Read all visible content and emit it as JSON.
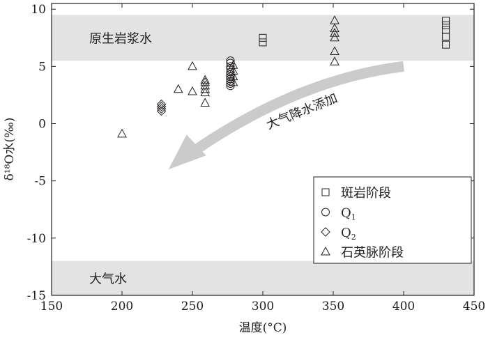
{
  "chart_data": {
    "type": "scatter",
    "xlabel": "温度(°C)",
    "ylabel": "δ¹⁸O水(‰)",
    "xlim": [
      150,
      450
    ],
    "ylim": [
      -15,
      10.5
    ],
    "x_ticks": [
      150,
      200,
      250,
      300,
      350,
      400,
      450
    ],
    "y_ticks": [
      10,
      5,
      0,
      -5,
      -10,
      -15
    ],
    "y_tick_labels": [
      "10",
      "5",
      "0",
      "-5",
      "-10",
      "-15"
    ],
    "bands": [
      {
        "label": "原生岩浆水",
        "y_range": [
          5.5,
          9.5
        ]
      },
      {
        "label": "大气水",
        "y_range": [
          -15,
          -12
        ]
      }
    ],
    "arrow_annotation": {
      "text": "大气降水添加",
      "from": [
        400,
        5
      ],
      "to": [
        233,
        -4
      ]
    },
    "legend_position": "bottom-right",
    "series": [
      {
        "name": "斑岩阶段",
        "marker": "square",
        "points": [
          [
            300,
            7.1
          ],
          [
            300,
            7.5
          ],
          [
            430,
            9.0
          ],
          [
            430,
            8.6
          ],
          [
            430,
            8.2
          ],
          [
            430,
            7.6
          ],
          [
            430,
            6.9
          ]
        ]
      },
      {
        "name": "Q1",
        "marker": "circle",
        "points": [
          [
            277,
            5.5
          ],
          [
            277,
            5.3
          ],
          [
            277,
            5.0
          ],
          [
            277,
            4.8
          ],
          [
            277,
            4.5
          ],
          [
            277,
            4.3
          ],
          [
            277,
            4.1
          ],
          [
            277,
            3.9
          ],
          [
            277,
            3.7
          ],
          [
            277,
            3.5
          ],
          [
            277,
            3.3
          ]
        ]
      },
      {
        "name": "Q2",
        "marker": "diamond",
        "points": [
          [
            228,
            1.7
          ],
          [
            228,
            1.5
          ],
          [
            228,
            1.3
          ],
          [
            228,
            1.1
          ]
        ]
      },
      {
        "name": "石英脉阶段",
        "marker": "triangle",
        "points": [
          [
            200,
            -0.9
          ],
          [
            240,
            3.0
          ],
          [
            250,
            5.0
          ],
          [
            250,
            2.8
          ],
          [
            259,
            3.8
          ],
          [
            259,
            3.6
          ],
          [
            259,
            3.3
          ],
          [
            259,
            3.0
          ],
          [
            259,
            2.7
          ],
          [
            259,
            1.8
          ],
          [
            279,
            5.1
          ],
          [
            279,
            4.6
          ],
          [
            279,
            4.1
          ],
          [
            279,
            3.6
          ],
          [
            351,
            9.0
          ],
          [
            351,
            8.3
          ],
          [
            351,
            7.9
          ],
          [
            351,
            7.5
          ],
          [
            351,
            6.3
          ],
          [
            351,
            5.4
          ]
        ]
      }
    ]
  },
  "legend": {
    "items": [
      {
        "marker": "square",
        "label": "斑岩阶段"
      },
      {
        "marker": "circle",
        "label": "Q",
        "sub": "1"
      },
      {
        "marker": "diamond",
        "label": "Q",
        "sub": "2"
      },
      {
        "marker": "triangle",
        "label": "石英脉阶段"
      }
    ]
  }
}
